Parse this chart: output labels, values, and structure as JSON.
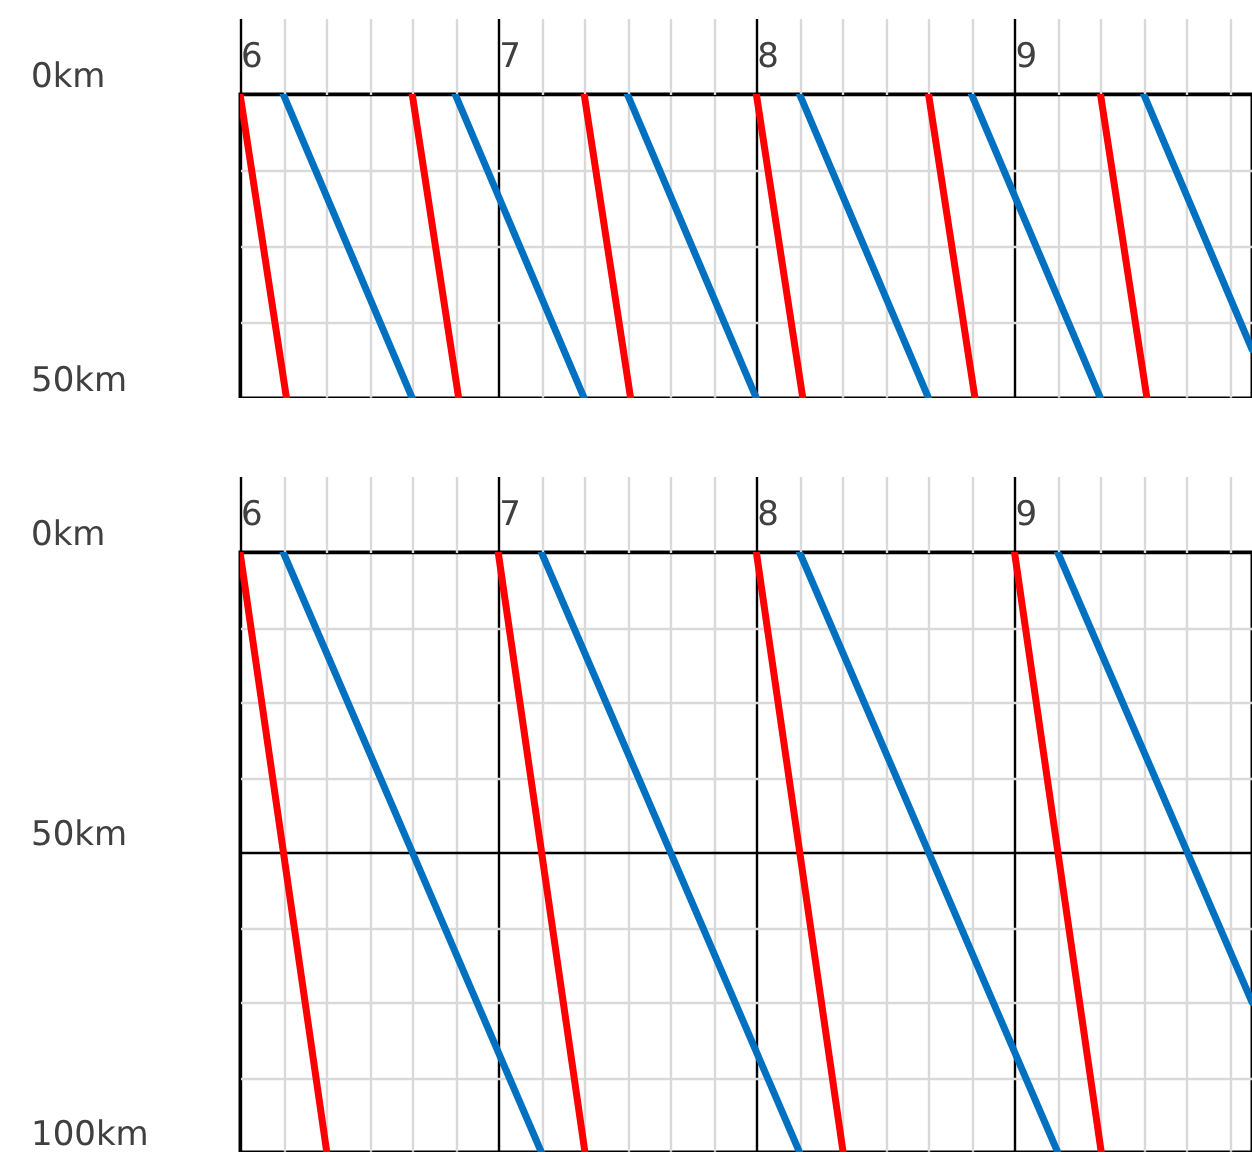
{
  "chart_data": [
    {
      "type": "line",
      "xlim": [
        6,
        9.92
      ],
      "ylim": [
        50,
        0
      ],
      "xticks": [
        6,
        {
          "value": 6.167,
          "label": null
        },
        {
          "value": 6.333,
          "label": null
        },
        {
          "value": 6.5,
          "label": null
        },
        {
          "value": 6.667,
          "label": null
        },
        {
          "value": 6.833,
          "label": null
        },
        7,
        {
          "value": 7.167,
          "label": null
        },
        {
          "value": 7.333,
          "label": null
        },
        {
          "value": 7.5,
          "label": null
        },
        {
          "value": 7.667,
          "label": null
        },
        {
          "value": 7.833,
          "label": null
        },
        8,
        {
          "value": 8.167,
          "label": null
        },
        {
          "value": 8.333,
          "label": null
        },
        {
          "value": 8.5,
          "label": null
        },
        {
          "value": 8.667,
          "label": null
        },
        {
          "value": 8.833,
          "label": null
        },
        9,
        {
          "value": 9.167,
          "label": null
        },
        {
          "value": 9.333,
          "label": null
        },
        {
          "value": 9.5,
          "label": null
        },
        {
          "value": 9.667,
          "label": null
        },
        {
          "value": 9.833,
          "label": null
        }
      ],
      "yticks": [
        {
          "value": 0,
          "label": "0km"
        },
        {
          "value": 12.5,
          "label": null
        },
        {
          "value": 25,
          "label": null
        },
        {
          "value": 37.5,
          "label": null
        },
        {
          "value": 50,
          "label": "50km"
        }
      ],
      "grid": true,
      "series": [
        {
          "color": "#ff0000",
          "x": [
            6,
            6.18
          ],
          "values": [
            0,
            50
          ]
        },
        {
          "color": "#ff0000",
          "x": [
            6.667,
            6.847
          ],
          "values": [
            0,
            50
          ]
        },
        {
          "color": "#ff0000",
          "x": [
            7.333,
            7.513
          ],
          "values": [
            0,
            50
          ]
        },
        {
          "color": "#ff0000",
          "x": [
            8,
            8.18
          ],
          "values": [
            0,
            50
          ]
        },
        {
          "color": "#ff0000",
          "x": [
            8.667,
            8.847
          ],
          "values": [
            0,
            50
          ]
        },
        {
          "color": "#ff0000",
          "x": [
            9.333,
            9.513
          ],
          "values": [
            0,
            50
          ]
        },
        {
          "color": "#0070c0",
          "x": [
            6.167,
            6.667
          ],
          "values": [
            0,
            50
          ]
        },
        {
          "color": "#0070c0",
          "x": [
            6.833,
            7.333
          ],
          "values": [
            0,
            50
          ]
        },
        {
          "color": "#0070c0",
          "x": [
            7.5,
            8
          ],
          "values": [
            0,
            50
          ]
        },
        {
          "color": "#0070c0",
          "x": [
            8.167,
            8.667
          ],
          "values": [
            0,
            50
          ]
        },
        {
          "color": "#0070c0",
          "x": [
            8.833,
            9.333
          ],
          "values": [
            0,
            50
          ]
        },
        {
          "color": "#0070c0",
          "x": [
            9.5,
            9.92
          ],
          "values": [
            0,
            42
          ]
        }
      ]
    },
    {
      "type": "line",
      "xlim": [
        6,
        9.92
      ],
      "ylim": [
        100,
        0
      ],
      "xticks": [
        6,
        {
          "value": 6.167,
          "label": null
        },
        {
          "value": 6.333,
          "label": null
        },
        {
          "value": 6.5,
          "label": null
        },
        {
          "value": 6.667,
          "label": null
        },
        {
          "value": 6.833,
          "label": null
        },
        7,
        {
          "value": 7.167,
          "label": null
        },
        {
          "value": 7.333,
          "label": null
        },
        {
          "value": 7.5,
          "label": null
        },
        {
          "value": 7.667,
          "label": null
        },
        {
          "value": 7.833,
          "label": null
        },
        8,
        {
          "value": 8.167,
          "label": null
        },
        {
          "value": 8.333,
          "label": null
        },
        {
          "value": 8.5,
          "label": null
        },
        {
          "value": 8.667,
          "label": null
        },
        {
          "value": 8.833,
          "label": null
        },
        9,
        {
          "value": 9.167,
          "label": null
        },
        {
          "value": 9.333,
          "label": null
        },
        {
          "value": 9.5,
          "label": null
        },
        {
          "value": 9.667,
          "label": null
        },
        {
          "value": 9.833,
          "label": null
        }
      ],
      "yticks": [
        {
          "value": 0,
          "label": "0km"
        },
        {
          "value": 12.5,
          "label": null
        },
        {
          "value": 25,
          "label": null
        },
        {
          "value": 37.5,
          "label": null
        },
        {
          "value": 50,
          "label": "50km"
        },
        {
          "value": 62.5,
          "label": null
        },
        {
          "value": 75,
          "label": null
        },
        {
          "value": 87.5,
          "label": null
        },
        {
          "value": 100,
          "label": "100km"
        }
      ],
      "grid": true,
      "series": [
        {
          "color": "#ff0000",
          "x": [
            6,
            6.336
          ],
          "values": [
            0,
            100
          ]
        },
        {
          "color": "#ff0000",
          "x": [
            7,
            7.336
          ],
          "values": [
            0,
            100
          ]
        },
        {
          "color": "#ff0000",
          "x": [
            8,
            8.336
          ],
          "values": [
            0,
            100
          ]
        },
        {
          "color": "#ff0000",
          "x": [
            9,
            9.336
          ],
          "values": [
            0,
            100
          ]
        },
        {
          "color": "#0070c0",
          "x": [
            6.167,
            7.167
          ],
          "values": [
            0,
            100
          ]
        },
        {
          "color": "#0070c0",
          "x": [
            7.167,
            8.167
          ],
          "values": [
            0,
            100
          ]
        },
        {
          "color": "#0070c0",
          "x": [
            8.167,
            9.167
          ],
          "values": [
            0,
            100
          ]
        },
        {
          "color": "#0070c0",
          "x": [
            9.167,
            9.92
          ],
          "values": [
            0,
            75
          ]
        }
      ]
    }
  ]
}
